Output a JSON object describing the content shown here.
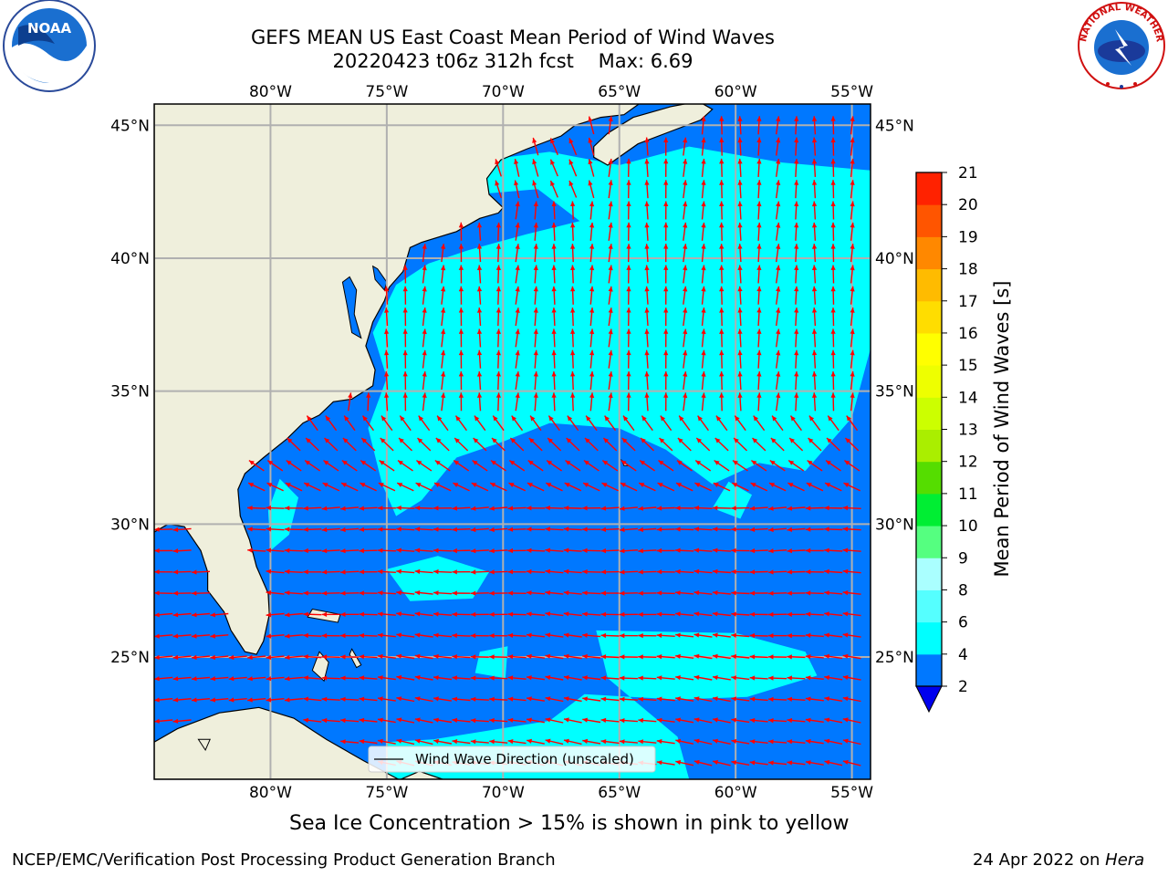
{
  "header": {
    "title": "GEFS MEAN US East Coast Mean Period of Wind Waves",
    "subtitle": "20220423 t06z 312h fcst    Max: 6.69"
  },
  "map": {
    "extent": {
      "lon_min": -85,
      "lon_max": -54.2,
      "lat_min": 20.4,
      "lat_max": 45.8
    },
    "lon_labels": [
      "80°W",
      "75°W",
      "70°W",
      "65°W",
      "60°W",
      "55°W"
    ],
    "lon_values": [
      -80,
      -75,
      -70,
      -65,
      -60,
      -55
    ],
    "lat_labels": [
      "45°N",
      "40°N",
      "35°N",
      "30°N",
      "25°N"
    ],
    "lat_values": [
      45,
      40,
      35,
      30,
      25
    ],
    "colors": {
      "land": "#efefdc",
      "ocean_2_4": "#0078ff",
      "ocean_4_6": "#00ffff",
      "ocean_6_8": "#55ffff",
      "arrow": "#ff0000",
      "grid": "#b0b0b0"
    },
    "legend": {
      "label": "Wind Wave Direction (unscaled)"
    }
  },
  "colorbar": {
    "label": "Mean Period of Wind Waves [s]",
    "ticks": [
      "2",
      "4",
      "6",
      "8",
      "9",
      "10",
      "11",
      "12",
      "13",
      "14",
      "15",
      "16",
      "17",
      "18",
      "19",
      "20",
      "21"
    ],
    "colors": [
      "#0078ff",
      "#00ffff",
      "#55ffff",
      "#aaffff",
      "#55ff80",
      "#00ee33",
      "#55dd00",
      "#aaee00",
      "#ccff00",
      "#eeff00",
      "#ffff00",
      "#ffdd00",
      "#ffbb00",
      "#ff8800",
      "#ff5500",
      "#ff2200"
    ],
    "under_color": "#0000ee",
    "over_color": "#ff0000"
  },
  "note": "Sea Ice Concentration > 15% is shown in pink to yellow",
  "footer": {
    "left": "NCEP/EMC/Verification Post Processing Product Generation Branch",
    "right_prefix": "24 Apr 2022 on ",
    "right_host": "Hera"
  },
  "logos": {
    "noaa": "NOAA",
    "nws": "NATIONAL WEATHER SERVICE"
  }
}
